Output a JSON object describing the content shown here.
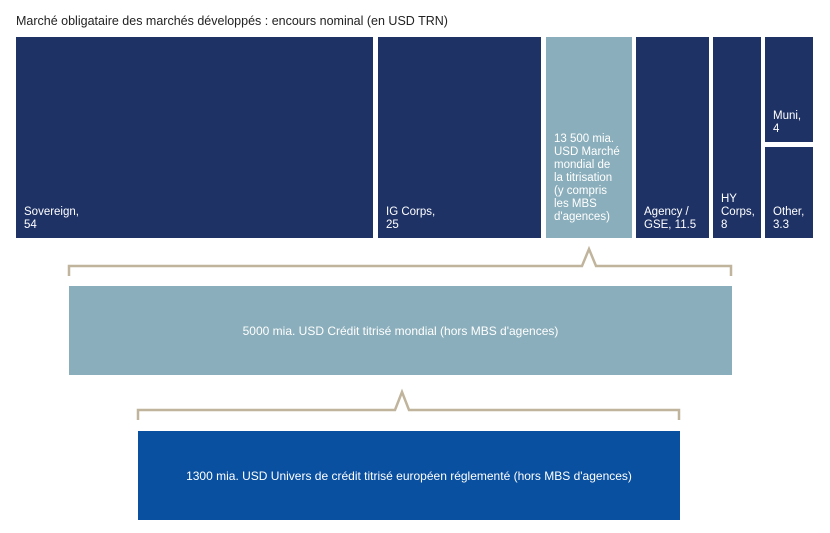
{
  "title": "Marché obligataire des marchés développés : encours nominal (en USD TRN)",
  "colors": {
    "navy": "#1e3266",
    "light_blue": "#8aaebb",
    "royal_blue": "#0a50a0",
    "bracket": "#c0b49c"
  },
  "chart_data": {
    "type": "treemap",
    "title": "Marché obligataire des marchés développés : encours nominal (en USD TRN)",
    "tiles": [
      {
        "line1": "Sovereign,",
        "line2": "54",
        "value": 54
      },
      {
        "line1": "IG Corps,",
        "line2": "25",
        "value": 25
      },
      {
        "lines": [
          "13 500 mia.",
          "USD Marché",
          "mondial de",
          "la titrisation",
          "(y compris",
          "les MBS",
          "d'agences)"
        ],
        "value": 13.5
      },
      {
        "line1": "Agency /",
        "line2": "GSE, 11.5",
        "value": 11.5
      },
      {
        "line1": "HY",
        "line2": "Corps, 8",
        "value": 8
      },
      {
        "line1": "Muni,",
        "line2": "4",
        "value": 4
      },
      {
        "line1": "Other,",
        "line2": "3.3",
        "value": 3.3
      }
    ],
    "bars": [
      {
        "label": "5000 mia. USD Crédit titrisé mondial (hors MBS d'agences)"
      },
      {
        "label": "1300 mia. USD Univers de crédit titrisé européen réglementé (hors MBS d'agences)"
      }
    ]
  }
}
